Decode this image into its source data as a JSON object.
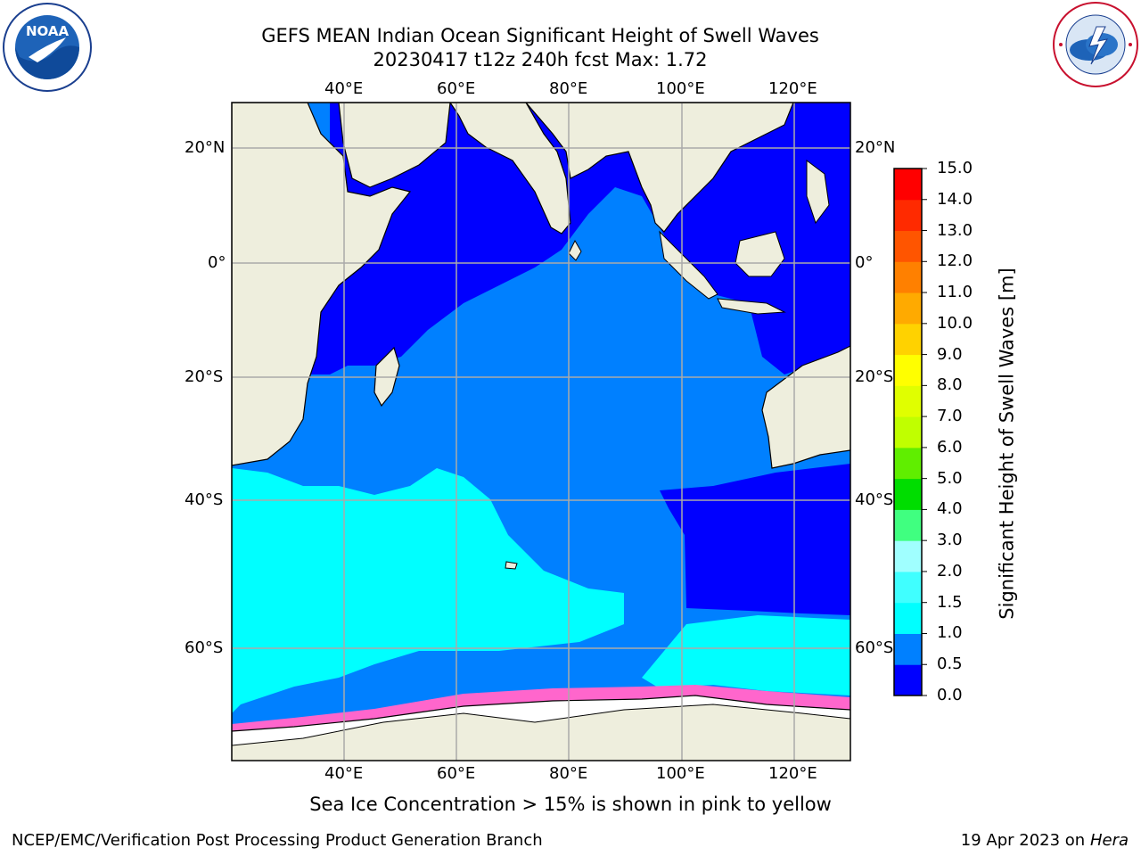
{
  "title": {
    "line1": "GEFS MEAN Indian Ocean Significant Height of Swell Waves",
    "line2": "20230417 t12z 240h fcst   Max: 1.72"
  },
  "logos": {
    "left": {
      "icon": "noaa-logo",
      "text": "NOAA"
    },
    "right": {
      "icon": "national-weather-service-logo",
      "text": "NATIONAL WEATHER SERVICE"
    }
  },
  "map": {
    "lon_ticks": [
      "40°E",
      "60°E",
      "80°E",
      "100°E",
      "120°E"
    ],
    "lat_ticks": [
      "20°N",
      "0°",
      "20°S",
      "40°S",
      "60°S"
    ],
    "lon_range": [
      20,
      130
    ],
    "lat_range": [
      -75,
      27
    ],
    "grid": true
  },
  "colorbar": {
    "title": "Significant Height of Swell Waves [m]",
    "ticks": [
      "0.0",
      "0.5",
      "1.0",
      "1.5",
      "2.0",
      "3.0",
      "4.0",
      "5.0",
      "6.0",
      "7.0",
      "8.0",
      "9.0",
      "10.0",
      "11.0",
      "12.0",
      "13.0",
      "14.0",
      "15.0"
    ],
    "colors": [
      "#0000ff",
      "#0080ff",
      "#00ffff",
      "#40ffff",
      "#a0ffff",
      "#40ff80",
      "#00dd00",
      "#60ee00",
      "#c0ff00",
      "#e0ff00",
      "#ffff00",
      "#ffd200",
      "#ffaa00",
      "#ff8000",
      "#ff5500",
      "#ff2a00",
      "#ff0000"
    ]
  },
  "note": "Sea Ice Concentration > 15% is shown in pink to yellow",
  "footer": {
    "left": "NCEP/EMC/Verification Post Processing Product Generation Branch",
    "right_date": "19 Apr 2023 on",
    "right_host": "Hera"
  }
}
